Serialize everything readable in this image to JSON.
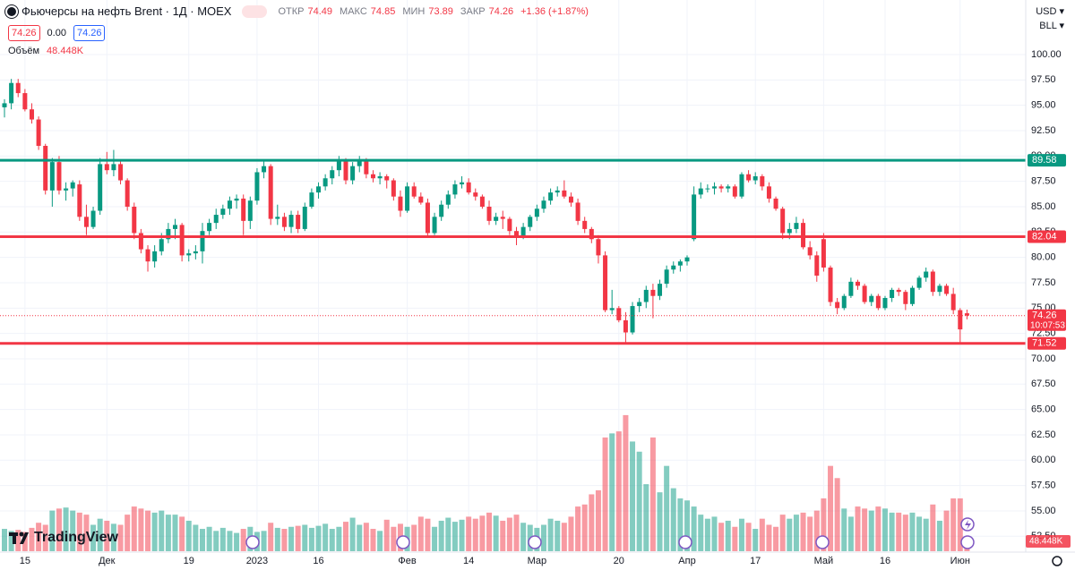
{
  "header": {
    "title": "Фьючерсы на нефть Brent · 1Д · MOEX",
    "open_label": "ОТКР",
    "high_label": "МАКС",
    "low_label": "МИН",
    "close_label": "ЗАКР",
    "change": "+1.36 (+1.87%)",
    "bid": "74.26",
    "spread": "0.00",
    "ask": "74.26",
    "volume_label": "Объём",
    "currency": "USD",
    "unit": "BLL",
    "logo": "TradingView"
  },
  "chart_data": {
    "type": "candlestick",
    "up_color": "#089981",
    "down_color": "#f23645",
    "grid": true,
    "ylim": [
      52.5,
      100
    ],
    "yticks": [
      {
        "value": 100,
        "label": "100.00"
      },
      {
        "value": 97.5,
        "label": "97.50"
      },
      {
        "value": 95,
        "label": "95.00"
      },
      {
        "value": 92.5,
        "label": "92.50"
      },
      {
        "value": 90,
        "label": "90.00"
      },
      {
        "value": 87.5,
        "label": "87.50"
      },
      {
        "value": 85,
        "label": "85.00"
      },
      {
        "value": 82.5,
        "label": "82.50"
      },
      {
        "value": 80,
        "label": "80.00"
      },
      {
        "value": 77.5,
        "label": "77.50"
      },
      {
        "value": 75,
        "label": "75.00"
      },
      {
        "value": 72.5,
        "label": "72.50"
      },
      {
        "value": 70,
        "label": "70.00"
      },
      {
        "value": 67.5,
        "label": "67.50"
      },
      {
        "value": 65,
        "label": "65.00"
      },
      {
        "value": 62.5,
        "label": "62.50"
      },
      {
        "value": 60,
        "label": "60.00"
      },
      {
        "value": 57.5,
        "label": "57.50"
      },
      {
        "value": 55,
        "label": "55.00"
      },
      {
        "value": 52.5,
        "label": "52.50"
      }
    ],
    "vlim": [
      0,
      1000
    ],
    "xticks": [
      {
        "value": 3,
        "label": "15"
      },
      {
        "value": 15,
        "label": "Дек"
      },
      {
        "value": 27,
        "label": "19"
      },
      {
        "value": 37,
        "label": "2023"
      },
      {
        "value": 46,
        "label": "16"
      },
      {
        "value": 59,
        "label": "Фев"
      },
      {
        "value": 68,
        "label": "14"
      },
      {
        "value": 78,
        "label": "Мар"
      },
      {
        "value": 90,
        "label": "20"
      },
      {
        "value": 100,
        "label": "Апр"
      },
      {
        "value": 110,
        "label": "17"
      },
      {
        "value": 120,
        "label": "Май"
      },
      {
        "value": 129,
        "label": "16"
      },
      {
        "value": 140,
        "label": "Июн"
      }
    ],
    "levels": [
      {
        "value": 89.58,
        "color": "#089981"
      },
      {
        "value": 82.04,
        "color": "#f23645"
      },
      {
        "value": 71.52,
        "color": "#f23645"
      }
    ],
    "last_volume_label": "48.448K",
    "price_time": "10:07:53",
    "candles": [
      [
        94.8,
        95.6,
        93.8,
        95.2,
        110
      ],
      [
        95.2,
        97.6,
        94.6,
        97.2,
        100
      ],
      [
        97.2,
        97.6,
        95.8,
        96.2,
        105
      ],
      [
        96.2,
        96.6,
        94.4,
        94.6,
        95
      ],
      [
        94.6,
        95.2,
        93.2,
        93.6,
        115
      ],
      [
        93.6,
        93.9,
        90.6,
        91.0,
        140
      ],
      [
        91.0,
        91.2,
        86.2,
        86.6,
        130
      ],
      [
        86.6,
        89.8,
        85.0,
        89.4,
        200
      ],
      [
        89.4,
        90.0,
        86.2,
        86.6,
        210
      ],
      [
        86.6,
        87.4,
        85.6,
        86.8,
        215
      ],
      [
        86.8,
        87.6,
        86.0,
        87.4,
        200
      ],
      [
        87.2,
        87.6,
        83.6,
        84.0,
        190
      ],
      [
        84.0,
        85.2,
        82.2,
        83.0,
        180
      ],
      [
        83.0,
        85.0,
        82.8,
        84.6,
        130
      ],
      [
        84.6,
        89.8,
        84.2,
        89.2,
        160
      ],
      [
        89.2,
        90.4,
        88.2,
        88.6,
        150
      ],
      [
        88.6,
        90.6,
        88.0,
        89.2,
        135
      ],
      [
        89.2,
        89.6,
        87.2,
        87.6,
        130
      ],
      [
        87.6,
        87.8,
        84.6,
        85.0,
        180
      ],
      [
        85.0,
        85.4,
        81.8,
        82.4,
        220
      ],
      [
        82.4,
        82.8,
        80.4,
        80.8,
        210
      ],
      [
        80.8,
        81.2,
        78.6,
        79.6,
        200
      ],
      [
        79.6,
        81.2,
        79.0,
        80.6,
        190
      ],
      [
        80.6,
        82.4,
        80.2,
        81.8,
        200
      ],
      [
        81.8,
        83.4,
        81.4,
        82.8,
        180
      ],
      [
        82.8,
        83.8,
        81.8,
        83.2,
        180
      ],
      [
        83.2,
        83.4,
        79.6,
        80.2,
        170
      ],
      [
        80.2,
        80.8,
        79.6,
        80.4,
        150
      ],
      [
        80.4,
        81.2,
        79.8,
        80.6,
        130
      ],
      [
        80.6,
        83.4,
        79.4,
        82.6,
        110
      ],
      [
        82.6,
        83.8,
        82.2,
        83.4,
        120
      ],
      [
        83.4,
        84.8,
        82.8,
        84.2,
        100
      ],
      [
        84.2,
        85.2,
        83.8,
        84.8,
        115
      ],
      [
        84.8,
        86.0,
        84.2,
        85.6,
        100
      ],
      [
        85.6,
        86.2,
        84.8,
        85.8,
        90
      ],
      [
        85.8,
        86.2,
        82.2,
        83.6,
        110
      ],
      [
        83.6,
        86.0,
        82.8,
        85.6,
        120
      ],
      [
        85.6,
        88.8,
        85.2,
        88.4,
        95
      ],
      [
        88.4,
        89.6,
        87.8,
        89.0,
        100
      ],
      [
        89.0,
        89.2,
        83.2,
        83.8,
        140
      ],
      [
        83.8,
        85.2,
        83.2,
        84.0,
        115
      ],
      [
        84.0,
        84.4,
        82.6,
        83.0,
        110
      ],
      [
        83.0,
        84.6,
        82.4,
        84.2,
        120
      ],
      [
        84.2,
        84.6,
        82.4,
        82.8,
        125
      ],
      [
        82.8,
        85.4,
        82.6,
        85.0,
        130
      ],
      [
        85.0,
        86.8,
        84.8,
        86.4,
        115
      ],
      [
        86.4,
        87.4,
        85.8,
        87.0,
        125
      ],
      [
        87.0,
        88.2,
        86.6,
        87.8,
        135
      ],
      [
        87.8,
        89.0,
        87.2,
        88.6,
        110
      ],
      [
        88.6,
        90.0,
        88.0,
        89.6,
        120
      ],
      [
        89.6,
        89.8,
        87.2,
        87.6,
        145
      ],
      [
        87.6,
        89.4,
        87.2,
        89.0,
        165
      ],
      [
        89.0,
        90.0,
        88.4,
        89.6,
        130
      ],
      [
        89.6,
        89.8,
        87.8,
        88.2,
        140
      ],
      [
        88.2,
        88.6,
        87.4,
        87.8,
        110
      ],
      [
        87.8,
        88.4,
        87.2,
        88.0,
        100
      ],
      [
        88.0,
        88.2,
        86.8,
        87.6,
        155
      ],
      [
        87.6,
        87.8,
        85.6,
        86.0,
        120
      ],
      [
        86.0,
        86.6,
        84.0,
        84.6,
        135
      ],
      [
        84.6,
        87.4,
        84.4,
        87.0,
        120
      ],
      [
        87.0,
        87.4,
        85.8,
        86.0,
        130
      ],
      [
        86.0,
        86.4,
        85.2,
        85.4,
        170
      ],
      [
        85.4,
        85.8,
        82.0,
        82.4,
        160
      ],
      [
        82.4,
        84.4,
        82.2,
        84.0,
        120
      ],
      [
        84.0,
        85.6,
        83.6,
        85.2,
        150
      ],
      [
        85.2,
        86.6,
        84.8,
        86.2,
        165
      ],
      [
        86.2,
        87.6,
        85.8,
        87.2,
        145
      ],
      [
        87.2,
        88.0,
        86.8,
        87.4,
        155
      ],
      [
        87.4,
        87.8,
        86.2,
        86.4,
        170
      ],
      [
        86.4,
        86.8,
        85.6,
        86.0,
        160
      ],
      [
        86.0,
        86.2,
        84.8,
        85.0,
        175
      ],
      [
        85.0,
        85.6,
        83.2,
        83.6,
        190
      ],
      [
        83.6,
        84.4,
        83.2,
        84.0,
        175
      ],
      [
        84.0,
        84.6,
        82.8,
        83.8,
        150
      ],
      [
        83.8,
        84.0,
        82.2,
        82.6,
        165
      ],
      [
        82.6,
        83.0,
        81.2,
        82.0,
        180
      ],
      [
        82.0,
        83.4,
        81.8,
        83.0,
        140
      ],
      [
        83.0,
        84.2,
        82.6,
        84.0,
        130
      ],
      [
        84.0,
        85.2,
        83.6,
        84.8,
        115
      ],
      [
        84.8,
        86.0,
        84.4,
        85.6,
        130
      ],
      [
        85.6,
        86.8,
        85.2,
        86.4,
        160
      ],
      [
        86.4,
        87.0,
        86.0,
        86.6,
        150
      ],
      [
        86.6,
        87.6,
        85.8,
        86.0,
        140
      ],
      [
        86.0,
        86.4,
        85.0,
        85.4,
        170
      ],
      [
        85.4,
        85.8,
        83.2,
        83.6,
        220
      ],
      [
        83.6,
        84.0,
        82.4,
        82.8,
        230
      ],
      [
        82.8,
        83.0,
        81.4,
        81.8,
        280
      ],
      [
        81.8,
        82.2,
        79.4,
        80.2,
        300
      ],
      [
        80.2,
        80.6,
        74.6,
        74.8,
        560
      ],
      [
        74.8,
        76.8,
        74.4,
        75.0,
        580
      ],
      [
        75.0,
        75.2,
        73.6,
        73.8,
        590
      ],
      [
        73.8,
        74.6,
        71.6,
        72.6,
        670
      ],
      [
        72.6,
        75.6,
        72.4,
        75.2,
        540
      ],
      [
        75.2,
        76.0,
        74.6,
        75.6,
        490
      ],
      [
        75.6,
        77.2,
        75.0,
        76.8,
        330
      ],
      [
        76.8,
        77.4,
        74.0,
        76.2,
        560
      ],
      [
        76.2,
        77.8,
        75.8,
        77.4,
        290
      ],
      [
        77.4,
        79.2,
        77.0,
        78.8,
        420
      ],
      [
        78.8,
        79.6,
        78.4,
        79.2,
        310
      ],
      [
        79.2,
        79.8,
        78.6,
        79.6,
        260
      ],
      [
        79.6,
        80.2,
        79.2,
        80.0,
        250
      ],
      [
        81.8,
        87.0,
        81.6,
        86.2,
        220
      ],
      [
        86.2,
        87.4,
        85.8,
        86.8,
        180
      ],
      [
        86.8,
        87.2,
        86.4,
        86.8,
        160
      ],
      [
        86.8,
        87.4,
        86.2,
        87.0,
        170
      ],
      [
        87.0,
        87.2,
        86.4,
        86.8,
        140
      ],
      [
        86.8,
        87.2,
        86.4,
        87.0,
        150
      ],
      [
        87.0,
        87.2,
        85.8,
        86.0,
        120
      ],
      [
        86.0,
        88.4,
        85.8,
        88.2,
        160
      ],
      [
        88.2,
        88.6,
        87.4,
        87.6,
        140
      ],
      [
        87.6,
        88.4,
        87.2,
        88.0,
        110
      ],
      [
        88.0,
        88.2,
        86.6,
        87.0,
        160
      ],
      [
        87.0,
        87.4,
        85.4,
        85.8,
        130
      ],
      [
        85.8,
        86.0,
        84.6,
        84.8,
        120
      ],
      [
        84.8,
        85.0,
        81.8,
        82.4,
        180
      ],
      [
        82.4,
        83.4,
        81.8,
        82.8,
        160
      ],
      [
        82.8,
        84.0,
        82.4,
        83.4,
        180
      ],
      [
        83.4,
        83.8,
        80.8,
        81.0,
        190
      ],
      [
        81.0,
        81.6,
        79.8,
        80.2,
        170
      ],
      [
        80.2,
        80.6,
        77.6,
        78.2,
        200
      ],
      [
        81.8,
        82.4,
        78.6,
        79.0,
        260
      ],
      [
        79.0,
        79.2,
        75.2,
        75.6,
        420
      ],
      [
        75.6,
        76.0,
        74.4,
        75.0,
        360
      ],
      [
        75.0,
        76.4,
        74.8,
        76.2,
        210
      ],
      [
        76.2,
        78.0,
        76.0,
        77.6,
        170
      ],
      [
        77.6,
        77.8,
        76.8,
        77.2,
        220
      ],
      [
        77.2,
        77.4,
        75.4,
        75.6,
        210
      ],
      [
        75.6,
        76.4,
        75.2,
        76.2,
        200
      ],
      [
        76.2,
        76.4,
        74.8,
        75.0,
        220
      ],
      [
        75.0,
        76.2,
        74.8,
        76.0,
        210
      ],
      [
        76.0,
        77.0,
        75.6,
        76.8,
        190
      ],
      [
        76.8,
        77.0,
        76.2,
        76.6,
        190
      ],
      [
        76.6,
        76.8,
        74.8,
        75.4,
        180
      ],
      [
        75.4,
        77.2,
        75.2,
        77.0,
        190
      ],
      [
        77.0,
        78.2,
        76.8,
        78.0,
        170
      ],
      [
        78.0,
        79.0,
        77.6,
        78.6,
        160
      ],
      [
        78.6,
        78.8,
        76.2,
        76.6,
        230
      ],
      [
        76.6,
        77.4,
        76.2,
        77.2,
        150
      ],
      [
        77.2,
        77.4,
        76.2,
        76.4,
        200
      ],
      [
        76.4,
        77.0,
        74.4,
        74.8,
        260
      ],
      [
        74.8,
        75.0,
        71.52,
        72.9,
        260
      ],
      [
        74.49,
        74.85,
        73.89,
        74.26,
        48.448
      ]
    ]
  }
}
